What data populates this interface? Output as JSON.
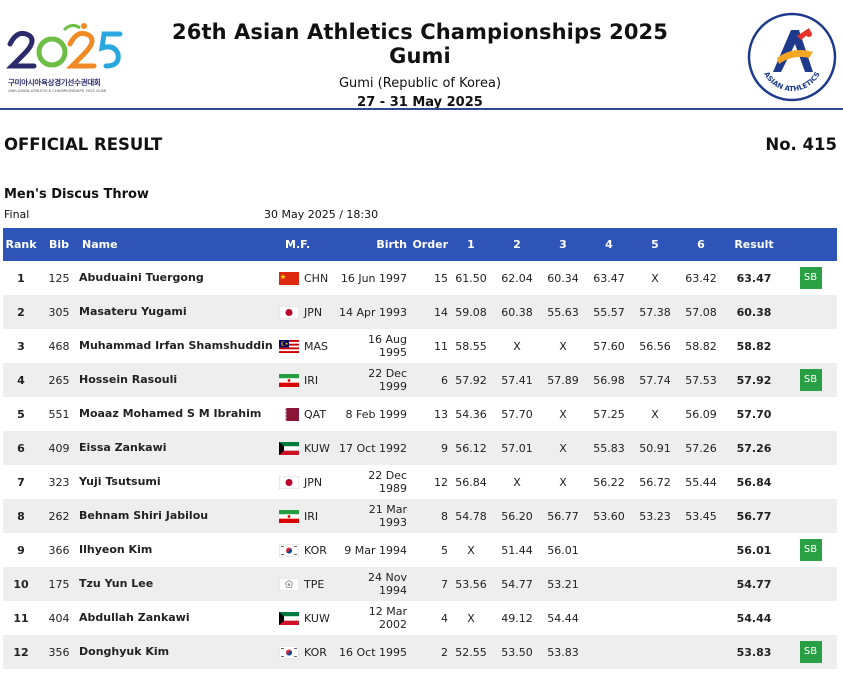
{
  "header": {
    "logo_left": {
      "year_text": "2025",
      "korean_text": "구미아시아육상경기선수권대회",
      "english_text": "26th ASIAN ATHLETICS CHAMPIONSHIPS 2025 GUMI",
      "colors": [
        "#6dbe45",
        "#2b2b6b",
        "#f08a24",
        "#29a8e0"
      ]
    },
    "title": "26th Asian Athletics Championships 2025 Gumi",
    "location": "Gumi (Republic of Korea)",
    "dates": "27 - 31 May 2025",
    "logo_right": {
      "text": "ASIAN ATHLETICS",
      "colors": [
        "#1e3a8a",
        "#e63329",
        "#f5a623"
      ]
    }
  },
  "doc": {
    "official_label": "OFFICIAL RESULT",
    "result_number": "No. 415",
    "event": "Men's Discus Throw",
    "round": "Final",
    "datetime": "30 May 2025 / 18:30"
  },
  "table": {
    "header_color": "#2e54b8",
    "sb_color": "#2aa044",
    "columns": [
      "Rank",
      "Bib",
      "Name",
      "M.F.",
      "Birth",
      "Order",
      "1",
      "2",
      "3",
      "4",
      "5",
      "6",
      "Result"
    ],
    "rows": [
      {
        "rank": "1",
        "bib": "125",
        "name": "Abuduaini Tuergong",
        "country": "CHN",
        "flag": "chn-flag",
        "birth": "16 Jun 1997",
        "order": "15",
        "attempts": [
          "61.50",
          "62.04",
          "60.34",
          "63.47",
          "X",
          "63.42"
        ],
        "result": "63.47",
        "note": "SB"
      },
      {
        "rank": "2",
        "bib": "305",
        "name": "Masateru Yugami",
        "country": "JPN",
        "flag": "jpn-flag",
        "birth": "14 Apr 1993",
        "order": "14",
        "attempts": [
          "59.08",
          "60.38",
          "55.63",
          "55.57",
          "57.38",
          "57.08"
        ],
        "result": "60.38",
        "note": ""
      },
      {
        "rank": "3",
        "bib": "468",
        "name": "Muhammad Irfan Shamshuddin",
        "country": "MAS",
        "flag": "mas-flag",
        "birth": "16 Aug 1995",
        "order": "11",
        "attempts": [
          "58.55",
          "X",
          "X",
          "57.60",
          "56.56",
          "58.82"
        ],
        "result": "58.82",
        "note": ""
      },
      {
        "rank": "4",
        "bib": "265",
        "name": "Hossein Rasouli",
        "country": "IRI",
        "flag": "iri-flag",
        "birth": "22 Dec 1999",
        "order": "6",
        "attempts": [
          "57.92",
          "57.41",
          "57.89",
          "56.98",
          "57.74",
          "57.53"
        ],
        "result": "57.92",
        "note": "SB"
      },
      {
        "rank": "5",
        "bib": "551",
        "name": "Moaaz Mohamed S M Ibrahim",
        "country": "QAT",
        "flag": "qat-flag",
        "birth": "8 Feb 1999",
        "order": "13",
        "attempts": [
          "54.36",
          "57.70",
          "X",
          "57.25",
          "X",
          "56.09"
        ],
        "result": "57.70",
        "note": ""
      },
      {
        "rank": "6",
        "bib": "409",
        "name": "Eissa Zankawi",
        "country": "KUW",
        "flag": "kuw-flag",
        "birth": "17 Oct 1992",
        "order": "9",
        "attempts": [
          "56.12",
          "57.01",
          "X",
          "55.83",
          "50.91",
          "57.26"
        ],
        "result": "57.26",
        "note": ""
      },
      {
        "rank": "7",
        "bib": "323",
        "name": "Yuji Tsutsumi",
        "country": "JPN",
        "flag": "jpn-flag",
        "birth": "22 Dec 1989",
        "order": "12",
        "attempts": [
          "56.84",
          "X",
          "X",
          "56.22",
          "56.72",
          "55.44"
        ],
        "result": "56.84",
        "note": ""
      },
      {
        "rank": "8",
        "bib": "262",
        "name": "Behnam Shiri Jabilou",
        "country": "IRI",
        "flag": "iri-flag",
        "birth": "21 Mar 1993",
        "order": "8",
        "attempts": [
          "54.78",
          "56.20",
          "56.77",
          "53.60",
          "53.23",
          "53.45"
        ],
        "result": "56.77",
        "note": ""
      },
      {
        "rank": "9",
        "bib": "366",
        "name": "Ilhyeon Kim",
        "country": "KOR",
        "flag": "kor-flag",
        "birth": "9 Mar 1994",
        "order": "5",
        "attempts": [
          "X",
          "51.44",
          "56.01",
          "",
          "",
          ""
        ],
        "result": "56.01",
        "note": "SB"
      },
      {
        "rank": "10",
        "bib": "175",
        "name": "Tzu Yun Lee",
        "country": "TPE",
        "flag": "tpe-flag",
        "birth": "24 Nov 1994",
        "order": "7",
        "attempts": [
          "53.56",
          "54.77",
          "53.21",
          "",
          "",
          ""
        ],
        "result": "54.77",
        "note": ""
      },
      {
        "rank": "11",
        "bib": "404",
        "name": "Abdullah Zankawi",
        "country": "KUW",
        "flag": "kuw-flag",
        "birth": "12 Mar 2002",
        "order": "4",
        "attempts": [
          "X",
          "49.12",
          "54.44",
          "",
          "",
          ""
        ],
        "result": "54.44",
        "note": ""
      },
      {
        "rank": "12",
        "bib": "356",
        "name": "Donghyuk Kim",
        "country": "KOR",
        "flag": "kor-flag",
        "birth": "16 Oct 1995",
        "order": "2",
        "attempts": [
          "52.55",
          "53.50",
          "53.83",
          "",
          "",
          ""
        ],
        "result": "53.83",
        "note": "SB"
      }
    ]
  }
}
